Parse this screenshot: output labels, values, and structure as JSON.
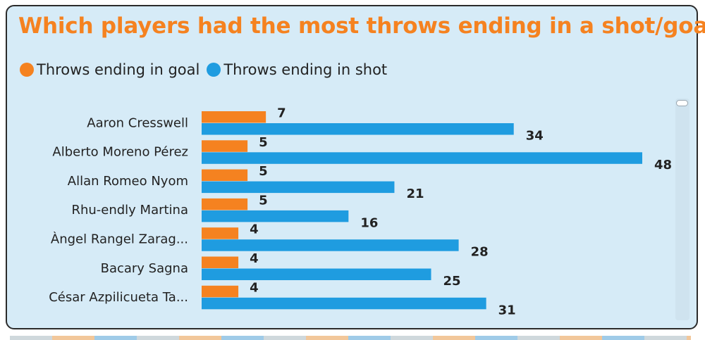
{
  "chart_data": {
    "type": "bar",
    "orientation": "horizontal",
    "title": "Which players had the most throws ending in a shot/goal?",
    "categories": [
      "Aaron Cresswell",
      "Alberto Moreno Pérez",
      "Allan Romeo Nyom",
      "Rhu-endly Martina",
      "Àngel Rangel Zarag...",
      "Bacary Sagna",
      "César Azpilicueta Ta..."
    ],
    "series": [
      {
        "name": "Throws ending in goal",
        "color": "#f58220",
        "values": [
          7,
          5,
          5,
          5,
          4,
          4,
          4
        ]
      },
      {
        "name": "Throws ending in shot",
        "color": "#1f9ce0",
        "values": [
          34,
          48,
          21,
          16,
          28,
          25,
          31
        ]
      }
    ],
    "xlim": [
      0,
      48
    ],
    "xlabel": "",
    "ylabel": "",
    "grid": false,
    "legend_position": "top-left"
  }
}
